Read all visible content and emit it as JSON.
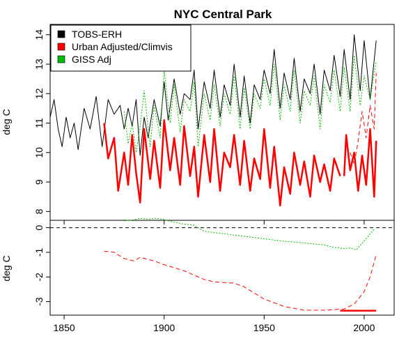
{
  "chart_data": {
    "type": "line",
    "title": "NYC Central Park",
    "xlim": [
      1843,
      2015
    ],
    "x_ticks": [
      1850,
      1900,
      1950,
      2000
    ],
    "legend_position": "top-left",
    "top_panel": {
      "ylabel": "deg C",
      "ylim": [
        7.7,
        14.35
      ],
      "y_ticks": [
        8,
        9,
        10,
        11,
        12,
        13,
        14
      ],
      "legend": [
        {
          "label": "TOBS-ERH",
          "color": "#000000"
        },
        {
          "label": "Urban Adjusted/Climvis",
          "color": "#ff0000"
        },
        {
          "label": "GISS Adj",
          "color": "#00bb00"
        }
      ],
      "series": [
        {
          "name": "TOBS-ERH",
          "color": "#000000",
          "dash": "solid",
          "width": 1,
          "x": [
            1843,
            1845,
            1847,
            1849,
            1851,
            1853,
            1855,
            1857,
            1860,
            1863,
            1866,
            1869,
            1872,
            1875,
            1878,
            1880,
            1882,
            1884,
            1886,
            1888,
            1890,
            1892,
            1895,
            1898,
            1900,
            1902,
            1905,
            1908,
            1910,
            1913,
            1915,
            1917,
            1920,
            1923,
            1925,
            1928,
            1930,
            1933,
            1935,
            1938,
            1940,
            1943,
            1945,
            1948,
            1950,
            1953,
            1955,
            1958,
            1960,
            1963,
            1965,
            1968,
            1970,
            1973,
            1975,
            1978,
            1980,
            1983,
            1985,
            1988,
            1990,
            1993,
            1995,
            1998,
            2000,
            2003,
            2006
          ],
          "values": [
            11.2,
            11.8,
            10.8,
            10.2,
            11.2,
            10.5,
            11.0,
            10.1,
            11.5,
            10.8,
            11.9,
            10.2,
            11.8,
            11.3,
            11.6,
            10.8,
            11.5,
            10.9,
            11.8,
            9.9,
            11.2,
            10.5,
            11.8,
            10.9,
            12.4,
            11.1,
            12.5,
            11.3,
            12.0,
            11.8,
            12.8,
            10.8,
            12.4,
            11.5,
            12.8,
            11.2,
            12.3,
            11.6,
            13.0,
            11.2,
            12.6,
            11.0,
            12.3,
            11.8,
            12.8,
            12.0,
            13.5,
            11.5,
            12.7,
            11.8,
            13.2,
            11.4,
            12.5,
            12.0,
            13.0,
            11.3,
            12.8,
            12.1,
            13.3,
            11.9,
            13.5,
            11.8,
            14.0,
            12.1,
            13.8,
            11.8,
            13.8
          ]
        },
        {
          "name": "Urban Adjusted/Climvis",
          "color": "#ff0000",
          "dash": "solid",
          "width": 2.5,
          "x": [
            1870,
            1872,
            1875,
            1877,
            1880,
            1882,
            1884,
            1886,
            1888,
            1890,
            1893,
            1895,
            1898,
            1900,
            1903,
            1905,
            1908,
            1910,
            1913,
            1915,
            1917,
            1920,
            1923,
            1925,
            1928,
            1930,
            1933,
            1935,
            1938,
            1940,
            1943,
            1945,
            1948,
            1950,
            1953,
            1955,
            1958,
            1960,
            1963,
            1965,
            1968,
            1970,
            1973,
            1975,
            1978,
            1980,
            1983,
            1985,
            1988
          ],
          "values": [
            11.0,
            9.8,
            10.5,
            8.7,
            10.0,
            8.9,
            10.6,
            9.3,
            8.3,
            10.8,
            9.1,
            10.4,
            8.8,
            11.1,
            9.4,
            10.5,
            8.9,
            10.9,
            9.2,
            10.2,
            8.5,
            10.6,
            9.0,
            10.8,
            8.7,
            10.0,
            9.5,
            10.6,
            8.9,
            10.4,
            8.7,
            9.8,
            9.1,
            10.8,
            8.8,
            10.2,
            8.2,
            9.5,
            8.6,
            10.0,
            8.9,
            9.7,
            8.5,
            9.9,
            9.0,
            9.6,
            8.7,
            9.8,
            9.2
          ]
        },
        {
          "name": "Urban Adjusted/Climvis",
          "color": "#ff0000",
          "dash": "solid",
          "width": 2.5,
          "x": [
            1990,
            1991,
            1993,
            1995,
            1997,
            1999,
            2001,
            2003,
            2005,
            2006
          ],
          "values": [
            9.2,
            10.6,
            9.4,
            10.0,
            8.7,
            9.9,
            8.9,
            10.8,
            8.5,
            10.4
          ]
        },
        {
          "name": "Urban Adjusted/Climvis",
          "color": "#ff0000",
          "dash": "dashed",
          "width": 1,
          "x": [
            1993,
            1995,
            1997,
            1999,
            2001,
            2003,
            2005,
            2006
          ],
          "values": [
            10.0,
            9.6,
            10.4,
            11.4,
            10.5,
            11.6,
            10.8,
            12.7
          ]
        },
        {
          "name": "GISS Adj",
          "color": "#00bb00",
          "dash": "dotted",
          "width": 1,
          "x": [
            1880,
            1882,
            1884,
            1886,
            1888,
            1890,
            1893,
            1895,
            1898,
            1900,
            1903,
            1905,
            1908,
            1910,
            1913,
            1915,
            1917,
            1920,
            1923,
            1925,
            1928,
            1930,
            1933,
            1935,
            1938,
            1940,
            1943,
            1945,
            1948,
            1950,
            1953,
            1955,
            1958,
            1960,
            1963,
            1965,
            1968,
            1970,
            1973,
            1975,
            1978,
            1980,
            1983,
            1985,
            1988,
            1990,
            1993,
            1995,
            1998,
            2000,
            2003,
            2006
          ],
          "values": [
            11.4,
            10.3,
            11.0,
            10.0,
            10.9,
            12.1,
            10.2,
            11.6,
            10.5,
            12.8,
            11.0,
            12.3,
            10.7,
            11.8,
            11.4,
            12.4,
            10.2,
            12.0,
            11.1,
            12.3,
            10.9,
            12.0,
            11.3,
            12.6,
            10.8,
            12.2,
            10.8,
            12.0,
            11.5,
            12.5,
            11.6,
            13.0,
            11.1,
            12.3,
            11.4,
            12.8,
            11.0,
            12.1,
            11.6,
            12.6,
            10.8,
            12.3,
            11.7,
            12.8,
            11.4,
            12.9,
            11.4,
            13.3,
            11.6,
            12.6,
            11.8,
            13.1
          ]
        }
      ]
    },
    "bottom_panel": {
      "ylabel": "deg C",
      "ylim": [
        -3.55,
        0.3
      ],
      "y_ticks": [
        0,
        -1,
        -2,
        -3
      ],
      "reference_line": 0,
      "series": [
        {
          "name": "GISS Adj",
          "color": "#00bb00",
          "dash": "dotted",
          "width": 1,
          "x": [
            1880,
            1885,
            1888,
            1892,
            1896,
            1900,
            1905,
            1910,
            1915,
            1920,
            1930,
            1940,
            1950,
            1960,
            1970,
            1980,
            1985,
            1990,
            1993,
            1996,
            2000,
            2005
          ],
          "values": [
            0.28,
            0.32,
            0.38,
            0.35,
            0.38,
            0.33,
            0.22,
            0.15,
            0.1,
            -0.15,
            -0.25,
            -0.35,
            -0.45,
            -0.55,
            -0.62,
            -0.7,
            -0.8,
            -0.85,
            -0.82,
            -0.9,
            -0.55,
            -0.05
          ]
        },
        {
          "name": "Urban Adjusted/Climvis",
          "color": "#ff0000",
          "dash": "dashed",
          "width": 1,
          "x": [
            1870,
            1875,
            1880,
            1885,
            1888,
            1895,
            1900,
            1910,
            1920,
            1925,
            1935,
            1940,
            1950,
            1960,
            1970,
            1980,
            1990,
            1995,
            2000,
            2003,
            2006
          ],
          "values": [
            -0.95,
            -1.0,
            -1.25,
            -1.35,
            -1.2,
            -1.35,
            -1.5,
            -1.75,
            -2.1,
            -2.2,
            -2.25,
            -2.4,
            -2.9,
            -3.2,
            -3.35,
            -3.35,
            -3.3,
            -3.1,
            -2.6,
            -2.0,
            -1.1
          ]
        },
        {
          "name": "Urban Adjusted/Climvis",
          "color": "#ff0000",
          "dash": "solid",
          "width": 2.5,
          "x": [
            1988,
            2006
          ],
          "values": [
            -3.37,
            -3.37
          ]
        }
      ]
    }
  }
}
